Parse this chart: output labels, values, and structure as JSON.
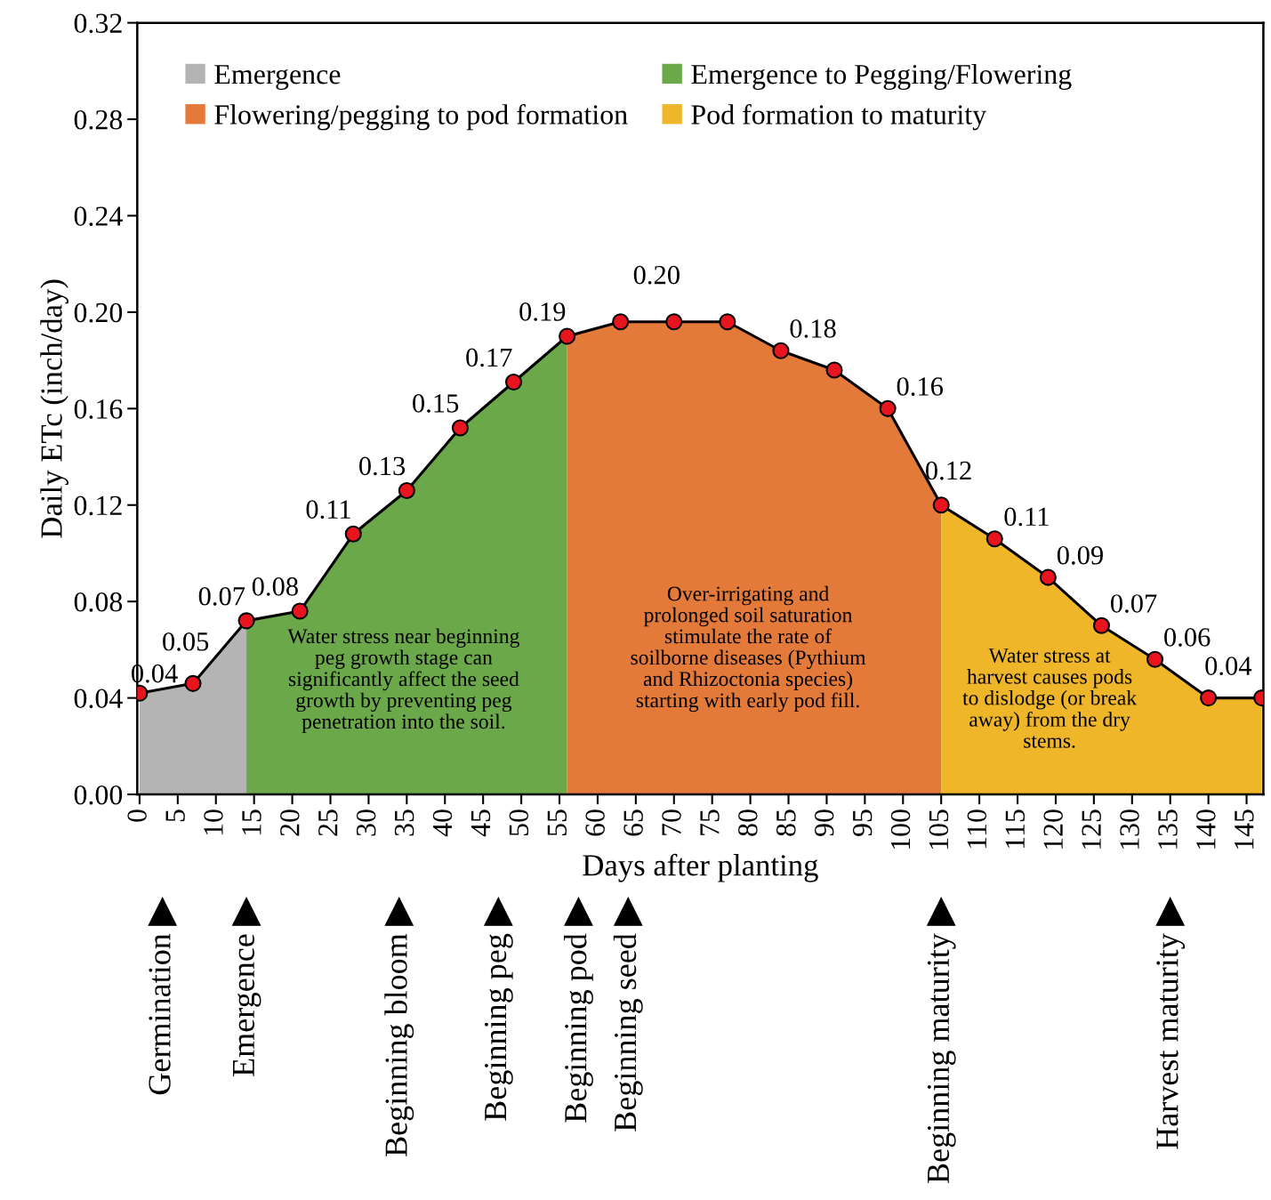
{
  "chart_data": {
    "type": "area",
    "xlabel": "Days after planting",
    "ylabel": "Daily ETc (inch/day)",
    "xlim": [
      -0.3,
      147.2
    ],
    "ylim": [
      0,
      0.32
    ],
    "xticks": [
      0,
      5,
      10,
      15,
      20,
      25,
      30,
      35,
      40,
      45,
      50,
      55,
      60,
      65,
      70,
      75,
      80,
      85,
      90,
      95,
      100,
      105,
      110,
      115,
      120,
      125,
      130,
      135,
      140,
      145
    ],
    "yticks": [
      {
        "value": 0,
        "label": "0.00"
      },
      {
        "value": 0.04,
        "label": "0.04"
      },
      {
        "value": 0.08,
        "label": "0.08"
      },
      {
        "value": 0.12,
        "label": "0.12"
      },
      {
        "value": 0.16,
        "label": "0.16"
      },
      {
        "value": 0.2,
        "label": "0.20"
      },
      {
        "value": 0.24,
        "label": "0.24"
      },
      {
        "value": 0.28,
        "label": "0.28"
      },
      {
        "value": 0.32,
        "label": "0.32"
      }
    ],
    "grid": false,
    "legend": "top",
    "line_style": "solid",
    "series": [
      {
        "name": "Emergence",
        "color": "#b4b4b4",
        "x": [
          0,
          7,
          14
        ],
        "values": [
          0.042,
          0.046,
          0.072
        ]
      },
      {
        "name": "Emergence to Pegging/Flowering",
        "color": "#6aa84a",
        "x": [
          14,
          21,
          28,
          35,
          42,
          49,
          56
        ],
        "values": [
          0.072,
          0.076,
          0.108,
          0.126,
          0.152,
          0.171,
          0.19
        ]
      },
      {
        "name": "Flowering/pegging to pod formation",
        "color": "#e47a3a",
        "x": [
          56,
          63,
          70,
          77,
          84,
          91,
          98,
          105
        ],
        "values": [
          0.19,
          0.196,
          0.196,
          0.196,
          0.184,
          0.176,
          0.16,
          0.12
        ]
      },
      {
        "name": "Pod formation to maturity",
        "color": "#f0b62a",
        "x": [
          105,
          112,
          119,
          126,
          133,
          140,
          147
        ],
        "values": [
          0.12,
          0.106,
          0.09,
          0.07,
          0.056,
          0.04,
          0.04
        ]
      },
      {
        "type": "scatter",
        "marker": "circle",
        "color": "#e8141e",
        "x": [
          0,
          7,
          14,
          21,
          28,
          35,
          42,
          49,
          56,
          63,
          70,
          77,
          84,
          91,
          98,
          105,
          112,
          119,
          126,
          133,
          140,
          147
        ],
        "values": [
          0.042,
          0.046,
          0.072,
          0.076,
          0.108,
          0.126,
          0.152,
          0.171,
          0.19,
          0.196,
          0.196,
          0.196,
          0.184,
          0.176,
          0.16,
          0.12,
          0.106,
          0.09,
          0.07,
          0.056,
          0.04,
          0.04
        ],
        "value_labels": [
          "0.04",
          "0.05",
          "0.07",
          "0.08",
          "0.11",
          "0.13",
          "0.15",
          "0.17",
          "0.19",
          null,
          "0.20",
          null,
          "0.18",
          null,
          "0.16",
          "0.12",
          "0.11",
          "0.09",
          "0.07",
          "0.06",
          "0.04",
          null
        ]
      }
    ],
    "annotations": [
      "Water stress near beginning\npeg growth stage can\nsignificantly affect the seed\ngrowth by preventing peg\npenetration into the soil.",
      "Over-irrigating and\nprolonged soil saturation\nstimulate the rate of\nsoilborne diseases (Pythium\nand Rhizoctonia species)\nstarting with early pod fill.",
      "Water stress at\nharvest causes pods\nto dislodge (or break\naway) from the dry\nstems.",
      "Germination",
      "Emergence",
      "Beginning bloom",
      "Beginning peg",
      "Beginning pod",
      "Beginning seed",
      "Beginning maturity",
      "Harvest maturity"
    ]
  }
}
